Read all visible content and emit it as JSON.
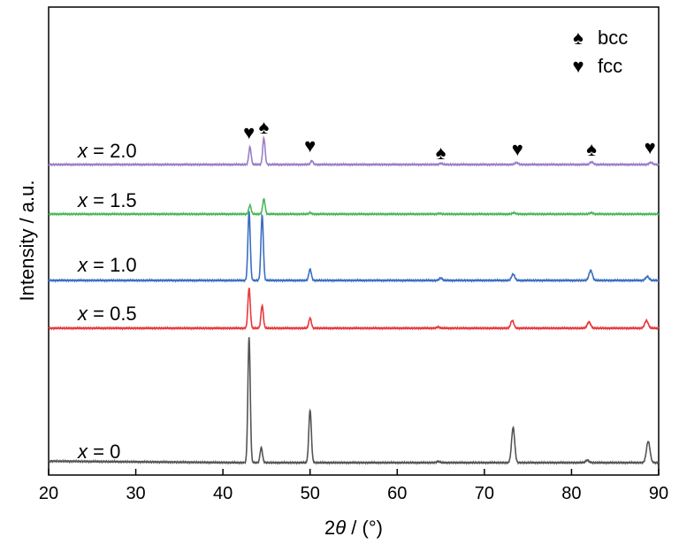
{
  "chart_data": {
    "type": "line",
    "xlabel_parts": [
      "2",
      "θ",
      " / (°)"
    ],
    "ylabel": "Intensity / a.u.",
    "xlim": [
      20,
      90
    ],
    "xticks": [
      "20",
      "30",
      "40",
      "50",
      "60",
      "70",
      "80",
      "90"
    ],
    "legend_placement": "top-right",
    "legend": [
      {
        "symbol": "♠",
        "label": "bcc"
      },
      {
        "symbol": "♥",
        "label": "fcc"
      }
    ],
    "peak_markers": [
      {
        "symbol": "♥",
        "x": 43.0
      },
      {
        "symbol": "♠",
        "x": 44.7
      },
      {
        "symbol": "♥",
        "x": 50.0
      },
      {
        "symbol": "♠",
        "x": 65.0
      },
      {
        "symbol": "♥",
        "x": 73.8
      },
      {
        "symbol": "♠",
        "x": 82.3
      },
      {
        "symbol": "♥",
        "x": 89.0
      }
    ],
    "series": [
      {
        "var": "x",
        "value": "0",
        "color": "#555555",
        "peaks": [
          [
            43.0,
            1.0
          ],
          [
            44.4,
            0.12
          ],
          [
            50.0,
            0.42
          ],
          [
            64.7,
            0.01
          ],
          [
            73.3,
            0.28
          ],
          [
            81.8,
            0.02
          ],
          [
            88.8,
            0.17
          ]
        ]
      },
      {
        "var": "x",
        "value": "0.5",
        "color": "#e8393c",
        "peaks": [
          [
            43.0,
            0.32
          ],
          [
            44.5,
            0.18
          ],
          [
            50.0,
            0.08
          ],
          [
            64.7,
            0.01
          ],
          [
            73.2,
            0.06
          ],
          [
            82.0,
            0.05
          ],
          [
            88.6,
            0.06
          ]
        ]
      },
      {
        "var": "x",
        "value": "1.0",
        "color": "#3a6fc2",
        "peaks": [
          [
            43.0,
            0.55
          ],
          [
            44.5,
            0.52
          ],
          [
            50.0,
            0.09
          ],
          [
            65.0,
            0.02
          ],
          [
            73.3,
            0.05
          ],
          [
            82.2,
            0.08
          ],
          [
            88.7,
            0.03
          ]
        ]
      },
      {
        "var": "x",
        "value": "1.5",
        "color": "#4cb85c",
        "peaks": [
          [
            43.1,
            0.07
          ],
          [
            44.7,
            0.12
          ],
          [
            50.0,
            0.01
          ],
          [
            64.8,
            0.005
          ],
          [
            73.4,
            0.01
          ],
          [
            82.3,
            0.01
          ]
        ]
      },
      {
        "var": "x",
        "value": "2.0",
        "color": "#9b7ec8",
        "peaks": [
          [
            43.1,
            0.14
          ],
          [
            44.7,
            0.21
          ],
          [
            50.2,
            0.03
          ],
          [
            65.0,
            0.01
          ],
          [
            73.7,
            0.015
          ],
          [
            82.3,
            0.02
          ],
          [
            89.1,
            0.015
          ]
        ]
      }
    ]
  }
}
